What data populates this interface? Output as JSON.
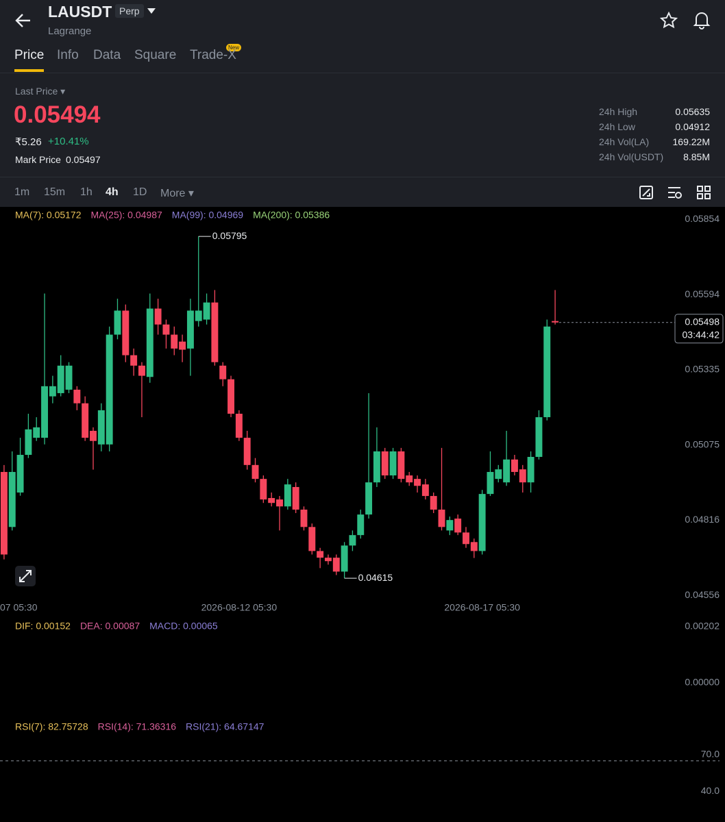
{
  "header": {
    "symbol": "LAUSDT",
    "badge": "Perp",
    "subtitle": "Lagrange"
  },
  "tabs": [
    "Price",
    "Info",
    "Data",
    "Square",
    "Trade-X"
  ],
  "tab_badge": "New",
  "price": {
    "label": "Last Price",
    "last": "0.05494",
    "fiat": "₹5.26",
    "change": "+10.41%",
    "mark_label": "Mark Price",
    "mark": "0.05497"
  },
  "stats": [
    [
      "24h High",
      "0.05635"
    ],
    [
      "24h Low",
      "0.04912"
    ],
    [
      "24h Vol(LA)",
      "169.22M"
    ],
    [
      "24h Vol(USDT)",
      "8.85M"
    ]
  ],
  "intervals": [
    "1m",
    "15m",
    "1h",
    "4h",
    "1D",
    "More"
  ],
  "chart_data": {
    "type": "candlestick",
    "legend": [
      {
        "text": "MA(7): 0.05172",
        "color": "#e8c15a"
      },
      {
        "text": "MA(25): 0.04987",
        "color": "#d9609a"
      },
      {
        "text": "MA(99): 0.04969",
        "color": "#8b7fd6"
      },
      {
        "text": "MA(200): 0.05386",
        "color": "#9ad57a"
      }
    ],
    "up_color": "#2ebd85",
    "down_color": "#f6465d",
    "ylim": [
      0.04535,
      0.0589
    ],
    "yticks": [
      0.05854,
      0.05594,
      0.05335,
      0.05075,
      0.04816,
      0.04556
    ],
    "left_label": "07 05:30",
    "countdown": "03:44:42",
    "categories": [
      null,
      null,
      null,
      null,
      null,
      null,
      null,
      null,
      null,
      null,
      null,
      null,
      null,
      null,
      null,
      null,
      null,
      null,
      null,
      null,
      null,
      null,
      null,
      null,
      null,
      null,
      null,
      null,
      null,
      "2026-08-12 05:30",
      null,
      null,
      null,
      null,
      null,
      null,
      null,
      null,
      null,
      null,
      null,
      null,
      null,
      null,
      null,
      null,
      null,
      null,
      null,
      null,
      null,
      null,
      null,
      null,
      null,
      null,
      null,
      null,
      null,
      "2026-08-17 05:30",
      null,
      null,
      null,
      null,
      null,
      null,
      null,
      null,
      null
    ],
    "candles": {
      "open": [
        0.04982,
        0.04792,
        0.04911,
        0.05041,
        0.051,
        0.051,
        0.05243,
        0.05254,
        0.05266,
        0.05266,
        0.05219,
        0.05124,
        0.05077,
        0.05077,
        0.05456,
        0.05539,
        0.05385,
        0.05349,
        0.0531,
        0.05546,
        0.05491,
        0.05456,
        0.05432,
        0.05408,
        0.05503,
        0.05508,
        0.05567,
        0.05349,
        0.05302,
        0.05183,
        0.051,
        0.05006,
        0.04958,
        0.04892,
        0.04887,
        0.04863,
        0.0493,
        0.04852,
        0.04792,
        0.04709,
        0.04686,
        0.04686,
        0.04638,
        0.04728,
        0.04764,
        0.04835,
        0.04946,
        0.05053,
        0.0497,
        0.05053,
        0.0497,
        0.04958,
        0.04939,
        0.04899,
        0.04852,
        0.0478,
        0.04821,
        0.04773,
        0.0474,
        0.04709,
        0.04906,
        0.04958,
        0.04946,
        0.05025,
        0.04991,
        0.04946,
        0.05034,
        0.05171,
        0.05503
      ],
      "high": [
        0.05006,
        0.05053,
        0.051,
        0.05183,
        0.05171,
        0.05598,
        0.05314,
        0.05385,
        0.05361,
        0.05278,
        0.05243,
        0.05136,
        0.05219,
        0.05484,
        0.0558,
        0.0556,
        0.05408,
        0.05361,
        0.05598,
        0.0558,
        0.05508,
        0.05484,
        0.05456,
        0.0558,
        0.05795,
        0.05598,
        0.0561,
        0.05361,
        0.05314,
        0.05195,
        0.05124,
        0.0503,
        0.0497,
        0.04911,
        0.04899,
        0.04958,
        0.04946,
        0.04863,
        0.04804,
        0.0472,
        0.04697,
        0.04697,
        0.0474,
        0.0478,
        0.04852,
        0.05254,
        0.05136,
        0.05065,
        0.05065,
        0.05065,
        0.04982,
        0.0497,
        0.04958,
        0.04911,
        0.05065,
        0.04828,
        0.04835,
        0.04792,
        0.04752,
        0.0492,
        0.05053,
        0.05006,
        0.05124,
        0.05041,
        0.05006,
        0.05053,
        0.05195,
        0.05508,
        0.0561
      ],
      "low": [
        0.0468,
        0.0478,
        0.049,
        0.0503,
        0.05089,
        0.05077,
        0.05219,
        0.05243,
        0.05254,
        0.05195,
        0.05089,
        0.0499,
        0.05053,
        0.05053,
        0.0544,
        0.05361,
        0.05314,
        0.05171,
        0.0529,
        0.05456,
        0.05408,
        0.05385,
        0.05361,
        0.05314,
        0.05484,
        0.05491,
        0.05349,
        0.05278,
        0.05171,
        0.05089,
        0.0499,
        0.04946,
        0.04875,
        0.04863,
        0.0478,
        0.04852,
        0.0484,
        0.0478,
        0.04697,
        0.0465,
        0.04662,
        0.04626,
        0.04615,
        0.04709,
        0.04752,
        0.04821,
        0.0493,
        0.04958,
        0.04958,
        0.04946,
        0.04934,
        0.04911,
        0.04887,
        0.0484,
        0.0478,
        0.04764,
        0.04764,
        0.0472,
        0.04685,
        0.04697,
        0.04899,
        0.04946,
        0.04934,
        0.0497,
        0.04911,
        0.04911,
        0.05025,
        0.0516,
        0.05491
      ],
      "close": [
        0.04697,
        0.04982,
        0.05041,
        0.05129,
        0.05136,
        0.05278,
        0.05278,
        0.05349,
        0.05349,
        0.05219,
        0.051,
        0.05089,
        0.05195,
        0.05456,
        0.05539,
        0.05385,
        0.05349,
        0.05314,
        0.05546,
        0.05491,
        0.05456,
        0.05408,
        0.05404,
        0.05539,
        0.05539,
        0.05567,
        0.05361,
        0.05302,
        0.05183,
        0.051,
        0.05006,
        0.04958,
        0.04887,
        0.04875,
        0.04863,
        0.04939,
        0.04852,
        0.04792,
        0.04709,
        0.04686,
        0.04674,
        0.04638,
        0.04728,
        0.04764,
        0.04835,
        0.04946,
        0.05053,
        0.0497,
        0.05053,
        0.04958,
        0.04946,
        0.04934,
        0.04899,
        0.04852,
        0.04792,
        0.04816,
        0.04773,
        0.04733,
        0.04709,
        0.04906,
        0.04982,
        0.04991,
        0.05025,
        0.04982,
        0.04946,
        0.05034,
        0.05171,
        0.05484,
        0.05498
      ]
    },
    "high_index": 24,
    "low_index": 42
  },
  "macd": {
    "legend": [
      {
        "text": "DIF: 0.00152",
        "color": "#e8c15a"
      },
      {
        "text": "DEA: 0.00087",
        "color": "#d9609a"
      },
      {
        "text": "MACD: 0.00065",
        "color": "#8b7fd6"
      }
    ],
    "ylim": [
      -0.0012,
      0.00202
    ],
    "yticks": [
      0.00202,
      {
        "value": 0,
        "label": "0.00000"
      }
    ]
  },
  "rsi": {
    "legend": [
      {
        "text": "RSI(7): 82.75728",
        "color": "#e8c15a"
      },
      {
        "text": "RSI(14): 71.36316",
        "color": "#d9609a"
      },
      {
        "text": "RSI(21): 64.67147",
        "color": "#8b7fd6"
      }
    ],
    "ylim": [
      20,
      90
    ],
    "yticks": [
      {
        "value": 70,
        "label": "70.0"
      },
      {
        "value": 40,
        "label": "40.0"
      }
    ]
  }
}
